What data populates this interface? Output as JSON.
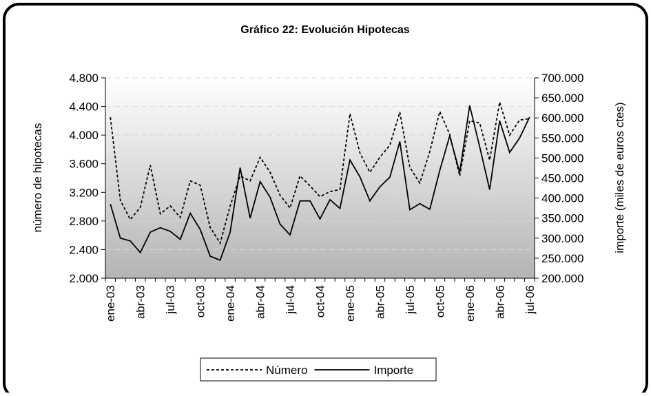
{
  "chart_data": {
    "type": "line",
    "title": "Gráfico 22: Evolución Hipotecas",
    "y_label": "número de hipotecas",
    "y2_label": "importe (miles de euros ctes)",
    "categories": [
      "ene-03",
      null,
      null,
      "abr-03",
      null,
      null,
      "jul-03",
      null,
      null,
      "oct-03",
      null,
      null,
      "ene-04",
      null,
      null,
      "abr-04",
      null,
      null,
      "jul-04",
      null,
      null,
      "oct-04",
      null,
      null,
      "ene-05",
      null,
      null,
      "abr-05",
      null,
      null,
      "jul-05",
      null,
      null,
      "oct-05",
      null,
      null,
      "ene-06",
      null,
      null,
      "abr-06",
      null,
      null,
      "jul-06"
    ],
    "series": [
      {
        "name": "Número",
        "color": "#000000",
        "dashed": true,
        "values": [
          4250,
          3090,
          2820,
          2990,
          3580,
          2900,
          3010,
          2850,
          3360,
          3300,
          2710,
          2490,
          3010,
          3430,
          3360,
          3690,
          3480,
          3160,
          2980,
          3430,
          3290,
          3140,
          3210,
          3240,
          4300,
          3750,
          3480,
          3690,
          3860,
          4320,
          3550,
          3330,
          3770,
          4330,
          4010,
          3430,
          4200,
          4170,
          3650,
          4460,
          4000,
          4210,
          4230
        ]
      },
      {
        "name": "Importe",
        "color": "#000000",
        "dashed": false,
        "axis": "y2",
        "values": [
          385000,
          300000,
          293000,
          264000,
          315000,
          326000,
          317000,
          297000,
          362000,
          322000,
          255000,
          245000,
          315000,
          476000,
          350000,
          441000,
          402000,
          335000,
          308000,
          393000,
          393000,
          348000,
          396000,
          374000,
          495000,
          453000,
          393000,
          428000,
          452000,
          541000,
          371000,
          386000,
          372000,
          469000,
          555000,
          464000,
          631000,
          528000,
          421000,
          593000,
          514000,
          550000,
          602000
        ]
      }
    ],
    "ylim": [
      2000,
      4800
    ],
    "yticks": [
      {
        "value": 2000,
        "label": "2.000"
      },
      {
        "value": 2400,
        "label": "2.400"
      },
      {
        "value": 2800,
        "label": "2.800"
      },
      {
        "value": 3200,
        "label": "3.200"
      },
      {
        "value": 3600,
        "label": "3.600"
      },
      {
        "value": 4000,
        "label": "4.000"
      },
      {
        "value": 4400,
        "label": "4.400"
      },
      {
        "value": 4800,
        "label": "4.800"
      }
    ],
    "y2lim": [
      200000,
      700000
    ],
    "y2ticks": [
      {
        "value": 200000,
        "label": "200.000"
      },
      {
        "value": 250000,
        "label": "250.000"
      },
      {
        "value": 300000,
        "label": "300.000"
      },
      {
        "value": 350000,
        "label": "350.000"
      },
      {
        "value": 400000,
        "label": "400.000"
      },
      {
        "value": 450000,
        "label": "450.000"
      },
      {
        "value": 500000,
        "label": "500.000"
      },
      {
        "value": 550000,
        "label": "550.000"
      },
      {
        "value": 600000,
        "label": "600.000"
      },
      {
        "value": 650000,
        "label": "650.000"
      },
      {
        "value": 700000,
        "label": "700.000"
      }
    ],
    "grid": true,
    "legend": "bottom"
  }
}
